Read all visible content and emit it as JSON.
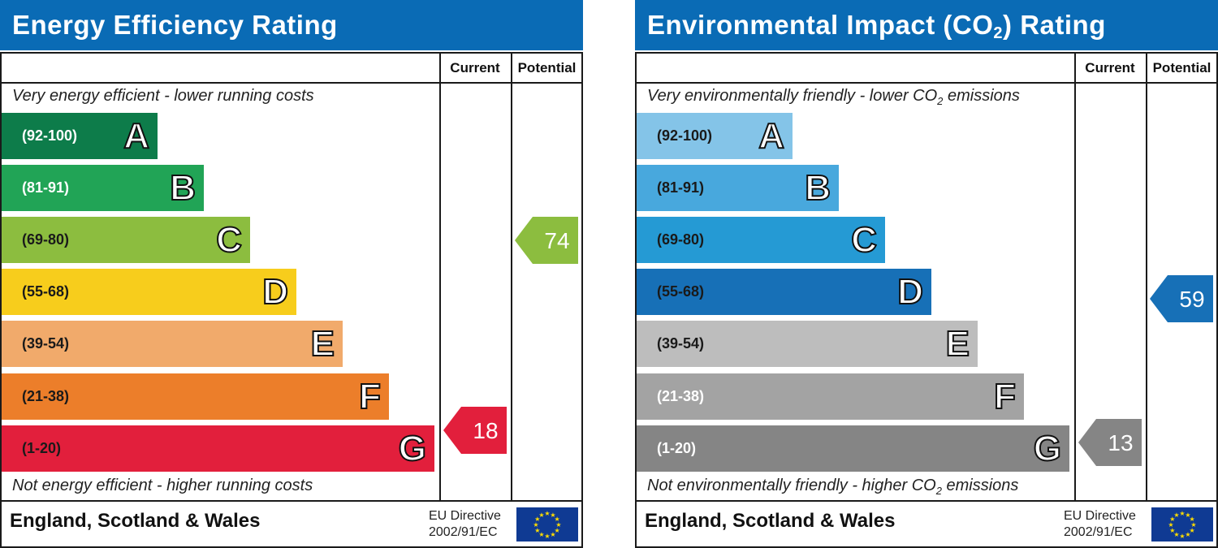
{
  "panels": [
    {
      "title_prefix": "Energy Efficiency Rating",
      "title_sub": "",
      "title_suffix": "",
      "col_current": "Current",
      "col_potential": "Potential",
      "top_caption_pre": "Very energy efficient - lower running costs",
      "top_caption_sub": "",
      "top_caption_post": "",
      "bottom_caption_pre": "Not energy efficient - higher running costs",
      "bottom_caption_sub": "",
      "bottom_caption_post": "",
      "bands": [
        {
          "range": "(92-100)",
          "letter": "A",
          "color": "#0d7c4a",
          "text_color": "#ffffff"
        },
        {
          "range": "(81-91)",
          "letter": "B",
          "color": "#21a456",
          "text_color": "#ffffff"
        },
        {
          "range": "(69-80)",
          "letter": "C",
          "color": "#8cbd3f",
          "text_color": "#1a1a1a"
        },
        {
          "range": "(55-68)",
          "letter": "D",
          "color": "#f7cd1c",
          "text_color": "#1a1a1a"
        },
        {
          "range": "(39-54)",
          "letter": "E",
          "color": "#f1aa6b",
          "text_color": "#1a1a1a"
        },
        {
          "range": "(21-38)",
          "letter": "F",
          "color": "#ec7e2a",
          "text_color": "#1a1a1a"
        },
        {
          "range": "(1-20)",
          "letter": "G",
          "color": "#e21f3c",
          "text_color": "#1a1a1a"
        }
      ],
      "current": {
        "value": "18",
        "band": "G",
        "color": "#e21f3c"
      },
      "potential": {
        "value": "74",
        "band": "C",
        "color": "#8cbd3f"
      },
      "footer_region": "England, Scotland & Wales",
      "footer_directive_1": "EU Directive",
      "footer_directive_2": "2002/91/EC"
    },
    {
      "title_prefix": "Environmental Impact (CO",
      "title_sub": "2",
      "title_suffix": ") Rating",
      "col_current": "Current",
      "col_potential": "Potential",
      "top_caption_pre": "Very environmentally friendly - lower CO",
      "top_caption_sub": "2",
      "top_caption_post": " emissions",
      "bottom_caption_pre": "Not environmentally friendly - higher CO",
      "bottom_caption_sub": "2",
      "bottom_caption_post": " emissions",
      "bands": [
        {
          "range": "(92-100)",
          "letter": "A",
          "color": "#84c4e8",
          "text_color": "#1a1a1a"
        },
        {
          "range": "(81-91)",
          "letter": "B",
          "color": "#48a8dd",
          "text_color": "#1a1a1a"
        },
        {
          "range": "(69-80)",
          "letter": "C",
          "color": "#259ad4",
          "text_color": "#1a1a1a"
        },
        {
          "range": "(55-68)",
          "letter": "D",
          "color": "#1770b7",
          "text_color": "#1a1a1a"
        },
        {
          "range": "(39-54)",
          "letter": "E",
          "color": "#bdbdbd",
          "text_color": "#1a1a1a"
        },
        {
          "range": "(21-38)",
          "letter": "F",
          "color": "#a3a3a3",
          "text_color": "#ffffff"
        },
        {
          "range": "(1-20)",
          "letter": "G",
          "color": "#858585",
          "text_color": "#ffffff"
        }
      ],
      "current": {
        "value": "13",
        "band": "G",
        "color": "#858585"
      },
      "potential": {
        "value": "59",
        "band": "D",
        "color": "#1770b7"
      },
      "footer_region": "England, Scotland & Wales",
      "footer_directive_1": "EU Directive",
      "footer_directive_2": "2002/91/EC"
    }
  ],
  "chart_data": [
    {
      "type": "table",
      "title": "Energy Efficiency Rating",
      "categories": [
        "A",
        "B",
        "C",
        "D",
        "E",
        "F",
        "G"
      ],
      "band_ranges": [
        "(92-100)",
        "(81-91)",
        "(69-80)",
        "(55-68)",
        "(39-54)",
        "(21-38)",
        "(1-20)"
      ],
      "series": [
        {
          "name": "Current",
          "value": 18,
          "band": "G"
        },
        {
          "name": "Potential",
          "value": 74,
          "band": "C"
        }
      ]
    },
    {
      "type": "table",
      "title": "Environmental Impact (CO2) Rating",
      "categories": [
        "A",
        "B",
        "C",
        "D",
        "E",
        "F",
        "G"
      ],
      "band_ranges": [
        "(92-100)",
        "(81-91)",
        "(69-80)",
        "(55-68)",
        "(39-54)",
        "(21-38)",
        "(1-20)"
      ],
      "series": [
        {
          "name": "Current",
          "value": 13,
          "band": "G"
        },
        {
          "name": "Potential",
          "value": 59,
          "band": "D"
        }
      ]
    }
  ]
}
